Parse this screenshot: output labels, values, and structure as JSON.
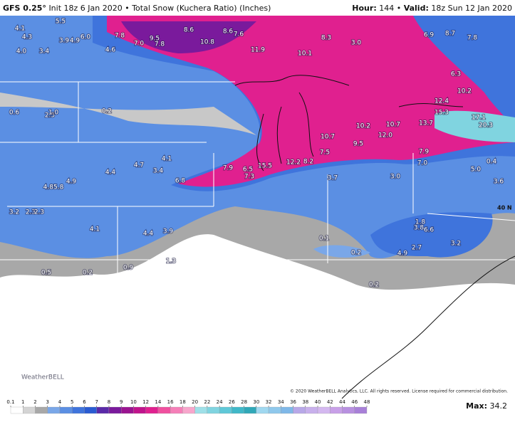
{
  "header": {
    "model": "GFS 0.25°",
    "description": "Init 18z 6 Jan 2020 • Total Snow (Kuchera Ratio) (Inches)",
    "hour_label": "Hour:",
    "hour": "144 •",
    "valid_label": "Valid:",
    "valid": "18z Sun 12 Jan 2020"
  },
  "map": {
    "latitude_label": "40 N",
    "logo": "WeatherBELL",
    "copyright": "© 2020 WeatherBELL Analytics, LLC. All rights reserved. License required for commercial distribution.",
    "snow_labels": [
      "4.1",
      "4.3",
      "4.0",
      "3.4",
      "5.5",
      "3.9",
      "4.9",
      "6.0",
      "4.6",
      "7.8",
      "7.0",
      "9.5",
      "7.8",
      "8.6",
      "10.8",
      "8.6",
      "7.6",
      "11.9",
      "10.1",
      "8.3",
      "3.0",
      "6.9",
      "8.7",
      "7.8",
      "6.3",
      "10.2",
      "12.4",
      "15.3",
      "13.7",
      "17.1",
      "20.3",
      "12.0",
      "10.7",
      "10.2",
      "10.7",
      "7.9",
      "6.5",
      "7.3",
      "15.5",
      "12.2",
      "8.2",
      "7.5",
      "9.5",
      "7.9",
      "7.0",
      "6.8",
      "4.1",
      "4.4",
      "3.4",
      "4.7",
      "4.9",
      "4.85.8",
      "3.2",
      "2.3",
      "4.1",
      "4.4",
      "3.9",
      "1.3",
      "0.9",
      "0.5",
      "0.2",
      "3.2",
      "3.8",
      "6.6",
      "4.9",
      "2.7",
      "0.2",
      "0.1",
      "0.2",
      "3.0",
      "5.0",
      "3.6",
      "0.4",
      "1.8",
      "2.5",
      "0.2",
      "0.6",
      "1.0",
      "2.3",
      "3.7"
    ]
  },
  "colorbar": {
    "ticks": [
      0.1,
      1,
      2,
      3,
      4,
      5,
      6,
      7,
      8,
      9,
      10,
      12,
      14,
      16,
      18,
      20,
      22,
      24,
      26,
      28,
      30,
      32,
      34,
      36,
      38,
      40,
      42,
      44,
      46,
      48
    ],
    "colors": [
      "#ffffff",
      "#d4d4d4",
      "#a8a8a8",
      "#7aa7e8",
      "#5b8fe3",
      "#3f74dc",
      "#2a5bd2",
      "#5a2aa8",
      "#7a1a9c",
      "#9a1490",
      "#c0148c",
      "#e0208f",
      "#f0509f",
      "#f57fb8",
      "#f8a6cc",
      "#9fe0e8",
      "#80d4e0",
      "#5fc8d8",
      "#40b8c8",
      "#30a8b8",
      "#a0d8f0",
      "#8fc8ec",
      "#7fb8e8",
      "#b8a8e8",
      "#c8b0ec",
      "#d4b8f0",
      "#c8a0e8",
      "#b890e0",
      "#a880d8"
    ],
    "max_label": "Max:",
    "max": "34.2"
  }
}
